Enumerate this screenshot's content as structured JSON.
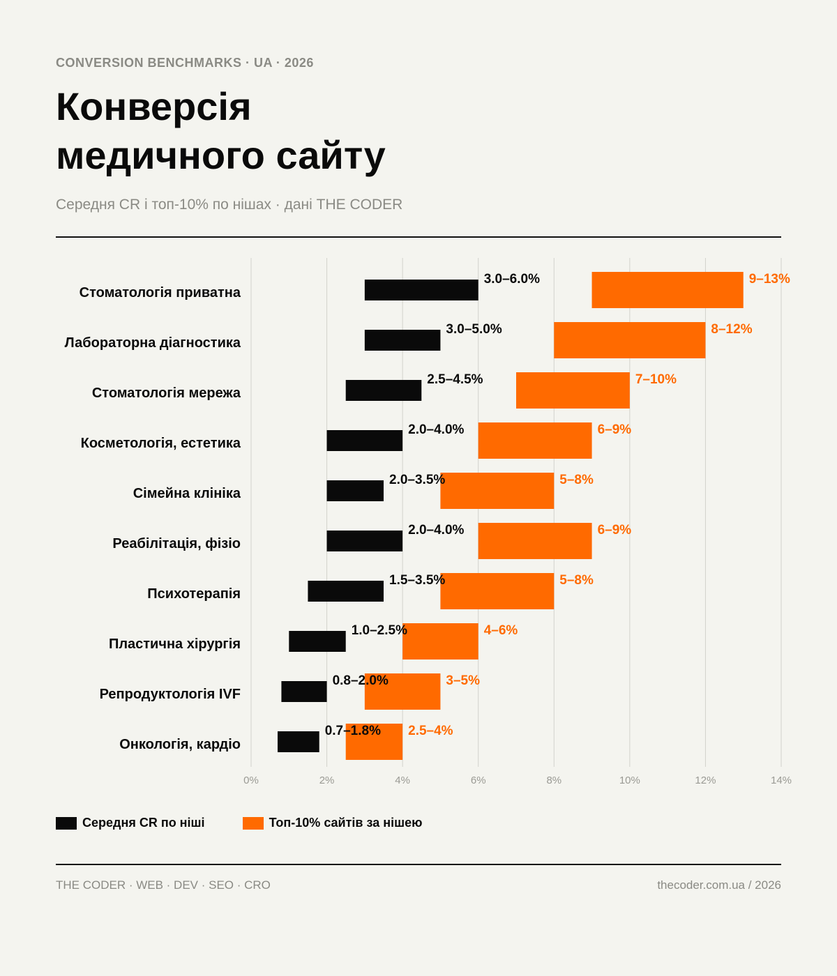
{
  "header": {
    "eyebrow": "CONVERSION BENCHMARKS · UA · 2026",
    "title_line1": "Конверсія",
    "title_line2": "медичного сайту",
    "subtitle": "Середня CR і топ-10% по нішах · дані THE CODER"
  },
  "legend": {
    "avg_label": "Середня CR по ніші",
    "top_label": "Топ-10% сайтів за нішею"
  },
  "footer": {
    "left": "THE CODER · WEB · DEV · SEO · CRO",
    "right": "thecoder.com.ua / 2026"
  },
  "colors": {
    "avg": "#0a0a0a",
    "top": "#ff6a00",
    "grid": "#d2d2cc",
    "tick_text": "#9a9a94"
  },
  "chart_data": {
    "type": "bar",
    "orientation": "horizontal-range",
    "xlim": [
      0,
      14
    ],
    "xticks": [
      0,
      2,
      4,
      6,
      8,
      10,
      12,
      14
    ],
    "tick_suffix": "%",
    "grid": true,
    "legend_position": "bottom-left",
    "categories": [
      "Стоматологія приватна",
      "Лабораторна діагностика",
      "Стоматологія мережа",
      "Косметологія, естетика",
      "Сімейна клініка",
      "Реабілітація, фізіо",
      "Психотерапія",
      "Пластична хірургія",
      "Репродуктологія IVF",
      "Онкологія, кардіо"
    ],
    "series": [
      {
        "name": "Середня CR по ніші",
        "ranges": [
          [
            3.0,
            6.0
          ],
          [
            3.0,
            5.0
          ],
          [
            2.5,
            4.5
          ],
          [
            2.0,
            4.0
          ],
          [
            2.0,
            3.5
          ],
          [
            2.0,
            4.0
          ],
          [
            1.5,
            3.5
          ],
          [
            1.0,
            2.5
          ],
          [
            0.8,
            2.0
          ],
          [
            0.7,
            1.8
          ]
        ],
        "labels": [
          "3.0–6.0%",
          "3.0–5.0%",
          "2.5–4.5%",
          "2.0–4.0%",
          "2.0–3.5%",
          "2.0–4.0%",
          "1.5–3.5%",
          "1.0–2.5%",
          "0.8–2.0%",
          "0.7–1.8%"
        ]
      },
      {
        "name": "Топ-10% сайтів за нішею",
        "ranges": [
          [
            9,
            13
          ],
          [
            8,
            12
          ],
          [
            7,
            10
          ],
          [
            6,
            9
          ],
          [
            5,
            8
          ],
          [
            6,
            9
          ],
          [
            5,
            8
          ],
          [
            4,
            6
          ],
          [
            3,
            5
          ],
          [
            2.5,
            4
          ]
        ],
        "labels": [
          "9–13%",
          "8–12%",
          "7–10%",
          "6–9%",
          "5–8%",
          "6–9%",
          "5–8%",
          "4–6%",
          "3–5%",
          "2.5–4%"
        ]
      }
    ]
  }
}
